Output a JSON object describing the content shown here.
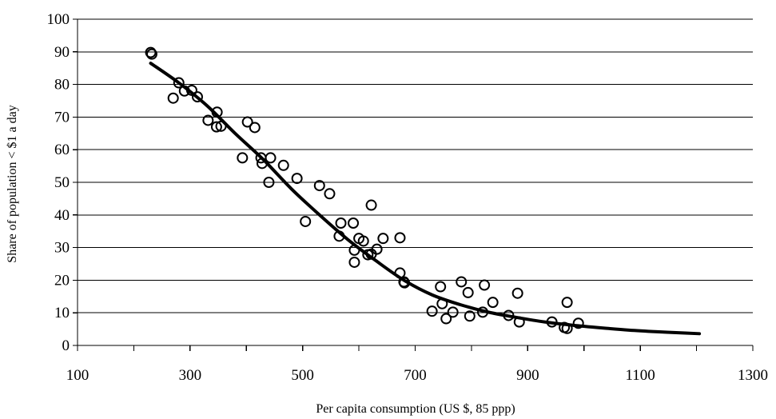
{
  "chart_data": {
    "type": "scatter",
    "title": "",
    "xlabel": "Per capita consumption (US $, 85 ppp)",
    "ylabel": "Share of population < $1 a day",
    "xlim": [
      100,
      1300
    ],
    "ylim": [
      0,
      100
    ],
    "x_ticks": [
      "100",
      "300",
      "500",
      "700",
      "900",
      "1100",
      "1300"
    ],
    "y_ticks": [
      "0",
      "10",
      "20",
      "30",
      "40",
      "50",
      "60",
      "70",
      "80",
      "90",
      "100"
    ],
    "grid": "horizontal",
    "legend": "none",
    "series": [
      {
        "marker": "open-circle",
        "points": [
          [
            230,
            89.8
          ],
          [
            232,
            89.3
          ],
          [
            270,
            75.8
          ],
          [
            280,
            80.5
          ],
          [
            290,
            78
          ],
          [
            303,
            78.2
          ],
          [
            313,
            76.2
          ],
          [
            332,
            69
          ],
          [
            348,
            71.5
          ],
          [
            347,
            67
          ],
          [
            355,
            67.2
          ],
          [
            393,
            57.5
          ],
          [
            402,
            68.5
          ],
          [
            415,
            66.8
          ],
          [
            426,
            57.5
          ],
          [
            428,
            55.8
          ],
          [
            440,
            50
          ],
          [
            443,
            57.5
          ],
          [
            466,
            55.2
          ],
          [
            490,
            51.2
          ],
          [
            505,
            38
          ],
          [
            530,
            49
          ],
          [
            548,
            46.5
          ],
          [
            565,
            33.5
          ],
          [
            568,
            37.5
          ],
          [
            590,
            37.5
          ],
          [
            592,
            29.2
          ],
          [
            592,
            25.5
          ],
          [
            600,
            32.8
          ],
          [
            608,
            32
          ],
          [
            616,
            27.8
          ],
          [
            622,
            28
          ],
          [
            622,
            43
          ],
          [
            632,
            29.5
          ],
          [
            643,
            32.8
          ],
          [
            673,
            33
          ],
          [
            673,
            22.2
          ],
          [
            680,
            19.5
          ],
          [
            681,
            19.2
          ],
          [
            730,
            10.5
          ],
          [
            745,
            18
          ],
          [
            748,
            12.8
          ],
          [
            755,
            8.2
          ],
          [
            767,
            10.2
          ],
          [
            782,
            19.5
          ],
          [
            794,
            16.2
          ],
          [
            797,
            9
          ],
          [
            820,
            10.2
          ],
          [
            823,
            18.5
          ],
          [
            838,
            13.2
          ],
          [
            866,
            9.2
          ],
          [
            882,
            16
          ],
          [
            885,
            7.2
          ],
          [
            943,
            7.2
          ],
          [
            965,
            5.5
          ],
          [
            970,
            13.2
          ],
          [
            970,
            5.2
          ],
          [
            990,
            6.8
          ]
        ]
      },
      {
        "type": "line",
        "style": "smooth-fit",
        "points": [
          [
            230,
            86.5
          ],
          [
            280,
            80.5
          ],
          [
            330,
            73.5
          ],
          [
            380,
            65
          ],
          [
            430,
            57
          ],
          [
            480,
            48
          ],
          [
            530,
            40
          ],
          [
            580,
            32.5
          ],
          [
            630,
            26
          ],
          [
            680,
            20
          ],
          [
            730,
            15.5
          ],
          [
            780,
            12.5
          ],
          [
            830,
            10.2
          ],
          [
            880,
            8.6
          ],
          [
            930,
            7.2
          ],
          [
            980,
            6.2
          ],
          [
            1030,
            5.4
          ],
          [
            1080,
            4.7
          ],
          [
            1130,
            4.2
          ],
          [
            1180,
            3.8
          ],
          [
            1205,
            3.6
          ]
        ]
      }
    ]
  }
}
